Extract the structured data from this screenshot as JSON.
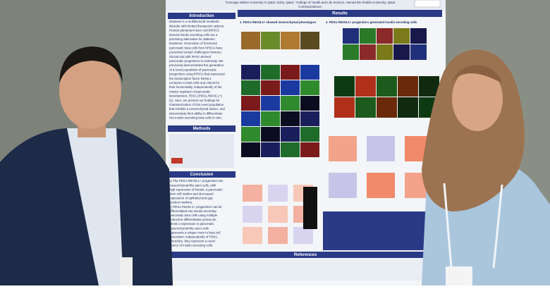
{
  "header": {
    "affiliations": "³Carnegie Mellon University in Qatar, Doha, Qatar; ⁴College of Health and Life Science, Hamad Bin Khalifa University, Qatar",
    "correspondence": "Correspondence:"
  },
  "introduction": {
    "title": "Introduction",
    "lines": [
      "Diabetes is a multifactorial metabolic",
      "disorder with limited therapeutic options.",
      "Human pluripotent stem cell (hPSC)-",
      "derived insulin secreting cells are a",
      "promising alternative for diabetes",
      "treatment. Generation of functional",
      "pancreatic beta cells from hPSCs have",
      "presented certain challenges however,",
      "clinical trial with hPSC-derived",
      "pancreatic progenitors is underway. We",
      "previously demonstrated the generation",
      "of a novel population of pancreatic",
      "progenitors using hPSCs that expressed",
      "the transcription factor NKX6.1",
      "exclusive to beta cells and critical for",
      "their functionality, independently of the",
      "master regulator of pancreatic",
      "development, PDX1 (PDX1-/NKX6.1+)",
      "(1). Here, we present our findings for",
      "characterization of this novel population",
      "that exhibits a mesenchymal nature, and",
      "demonstrate their ability to differentiate",
      "into insulin-secreting beta cells in vitro."
    ]
  },
  "methods": {
    "title": "Methods"
  },
  "conclusion": {
    "title": "Conclusion",
    "lines": [
      "1) The PDX1-/NKX6.1+ progenitors are",
      "mesenchymal-like stem cells, with",
      "high expression of Nestin, a pancreatic",
      "stem cell marker and decreased",
      "expression of epithelial and gap",
      "junction markers.",
      "2) PDX1-/NKX6.1+ progenitors can be",
      "differentiated into insulin-secreting",
      "pancreatic beta cells using multiple",
      "endocrine differentiation protocols.",
      "NKX6.1 expression in pancreatic",
      "mesenchymal-like stem cells",
      "represents a unique route to beta cell",
      "generation, independently of PDX1.",
      "Therefore, they represent a novel",
      "source of insulin-secreting cells."
    ]
  },
  "results": {
    "title": "Results",
    "panel_1_title": "1. PDX1-/NKX6.1+ showed mesenchymal phenotypes",
    "panel_2_title": "2. PDX1-/NKX6.1+ progenitors generated insulin-secreting cells"
  },
  "references": {
    "title": "References"
  }
}
